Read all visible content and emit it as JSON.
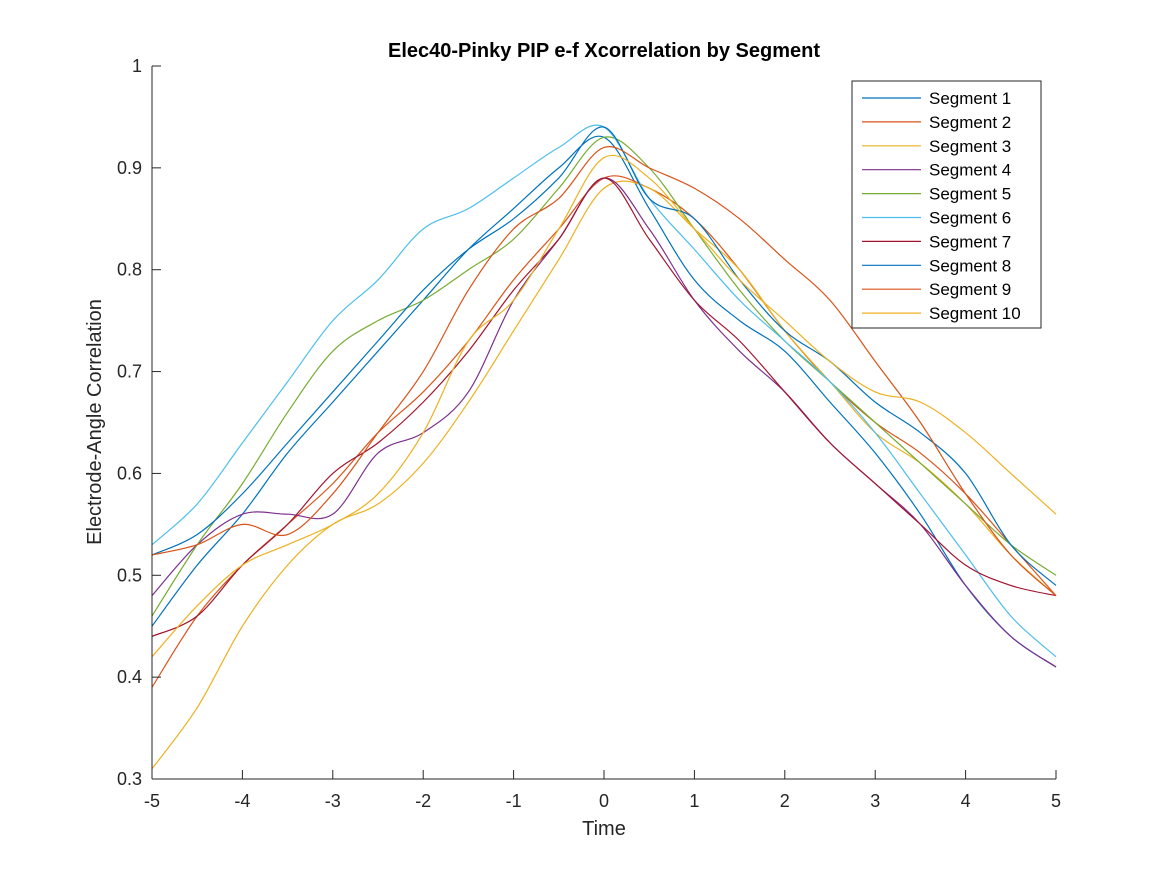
{
  "chart_data": {
    "type": "line",
    "title": "Elec40-Pinky PIP e-f Xcorrelation by Segment",
    "xlabel": "Time",
    "ylabel": "Electrode-Angle Correlation",
    "xlim": [
      -5,
      5
    ],
    "ylim": [
      0.3,
      1
    ],
    "xticks": [
      -5,
      -4,
      -3,
      -2,
      -1,
      0,
      1,
      2,
      3,
      4,
      5
    ],
    "yticks": [
      0.3,
      0.4,
      0.5,
      0.6,
      0.7,
      0.8,
      0.9,
      1
    ],
    "legend_position": "top-right",
    "grid": false,
    "x": [
      -5,
      -4.5,
      -4,
      -3.5,
      -3,
      -2.5,
      -2,
      -1.5,
      -1,
      -0.5,
      0,
      0.5,
      1,
      1.5,
      2,
      2.5,
      3,
      3.5,
      4,
      4.5,
      5
    ],
    "series": [
      {
        "name": "Segment 1",
        "color": "#0072BD",
        "values": [
          0.45,
          0.51,
          0.56,
          0.62,
          0.67,
          0.72,
          0.77,
          0.82,
          0.86,
          0.9,
          0.93,
          0.86,
          0.79,
          0.75,
          0.72,
          0.67,
          0.62,
          0.56,
          0.49,
          0.44,
          0.41
        ]
      },
      {
        "name": "Segment 2",
        "color": "#D95319",
        "values": [
          0.39,
          0.46,
          0.51,
          0.55,
          0.59,
          0.64,
          0.68,
          0.73,
          0.79,
          0.84,
          0.89,
          0.88,
          0.85,
          0.8,
          0.74,
          0.69,
          0.65,
          0.62,
          0.58,
          0.53,
          0.48
        ]
      },
      {
        "name": "Segment 3",
        "color": "#EDB120",
        "values": [
          0.31,
          0.37,
          0.45,
          0.51,
          0.55,
          0.57,
          0.61,
          0.67,
          0.74,
          0.81,
          0.88,
          0.88,
          0.84,
          0.8,
          0.74,
          0.69,
          0.64,
          0.61,
          0.57,
          0.52,
          0.48
        ]
      },
      {
        "name": "Segment 4",
        "color": "#7E2F8E",
        "values": [
          0.48,
          0.53,
          0.56,
          0.56,
          0.56,
          0.62,
          0.64,
          0.68,
          0.77,
          0.83,
          0.89,
          0.84,
          0.77,
          0.72,
          0.68,
          0.63,
          0.59,
          0.55,
          0.49,
          0.44,
          0.41
        ]
      },
      {
        "name": "Segment 5",
        "color": "#77AC30",
        "values": [
          0.46,
          0.53,
          0.59,
          0.66,
          0.72,
          0.75,
          0.77,
          0.8,
          0.83,
          0.88,
          0.93,
          0.9,
          0.84,
          0.78,
          0.73,
          0.69,
          0.65,
          0.61,
          0.57,
          0.53,
          0.5
        ]
      },
      {
        "name": "Segment 6",
        "color": "#4DBEEE",
        "values": [
          0.53,
          0.57,
          0.63,
          0.69,
          0.75,
          0.79,
          0.84,
          0.86,
          0.89,
          0.92,
          0.94,
          0.87,
          0.82,
          0.77,
          0.73,
          0.69,
          0.64,
          0.58,
          0.52,
          0.46,
          0.42
        ]
      },
      {
        "name": "Segment 7",
        "color": "#A2142F",
        "values": [
          0.44,
          0.46,
          0.51,
          0.55,
          0.6,
          0.63,
          0.67,
          0.72,
          0.78,
          0.83,
          0.89,
          0.83,
          0.77,
          0.73,
          0.68,
          0.63,
          0.59,
          0.55,
          0.51,
          0.49,
          0.48
        ]
      },
      {
        "name": "Segment 8",
        "color": "#0072BD",
        "values": [
          0.52,
          0.54,
          0.58,
          0.63,
          0.68,
          0.73,
          0.78,
          0.82,
          0.85,
          0.89,
          0.94,
          0.87,
          0.85,
          0.79,
          0.74,
          0.71,
          0.67,
          0.64,
          0.6,
          0.53,
          0.49
        ]
      },
      {
        "name": "Segment 9",
        "color": "#D95319",
        "values": [
          0.52,
          0.53,
          0.55,
          0.54,
          0.58,
          0.64,
          0.7,
          0.78,
          0.84,
          0.87,
          0.92,
          0.9,
          0.88,
          0.85,
          0.81,
          0.77,
          0.71,
          0.65,
          0.58,
          0.52,
          0.48
        ]
      },
      {
        "name": "Segment 10",
        "color": "#EDB120",
        "values": [
          0.42,
          0.47,
          0.51,
          0.53,
          0.55,
          0.58,
          0.64,
          0.73,
          0.77,
          0.84,
          0.91,
          0.89,
          0.84,
          0.79,
          0.75,
          0.71,
          0.68,
          0.67,
          0.64,
          0.6,
          0.56
        ]
      }
    ]
  }
}
